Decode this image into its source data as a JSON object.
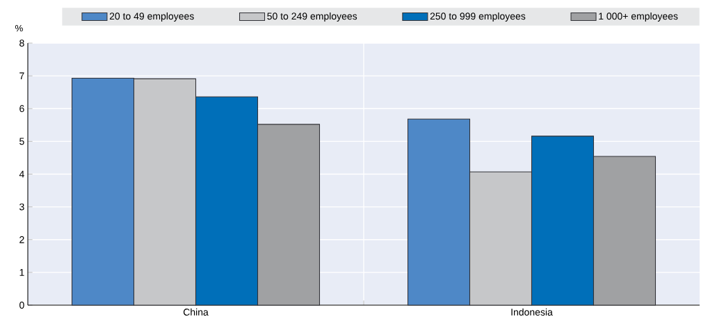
{
  "chart_data": {
    "type": "bar",
    "ylabel": "%",
    "categories": [
      "China",
      "Indonesia"
    ],
    "series": [
      {
        "name": "20 to 49 employees",
        "color": "#4e88c7",
        "values": [
          6.93,
          5.68
        ]
      },
      {
        "name": "50 to 249 employees",
        "color": "#c6c7c9",
        "values": [
          6.91,
          4.07
        ]
      },
      {
        "name": "250 to 999 employees",
        "color": "#006fb9",
        "values": [
          6.36,
          5.16
        ]
      },
      {
        "name": "1 000+ employees",
        "color": "#a0a1a3",
        "values": [
          5.52,
          4.54
        ]
      }
    ],
    "ylim": [
      0,
      8
    ],
    "yticks": [
      0,
      1,
      2,
      3,
      4,
      5,
      6,
      7,
      8
    ],
    "grid": true,
    "legend": "top"
  }
}
